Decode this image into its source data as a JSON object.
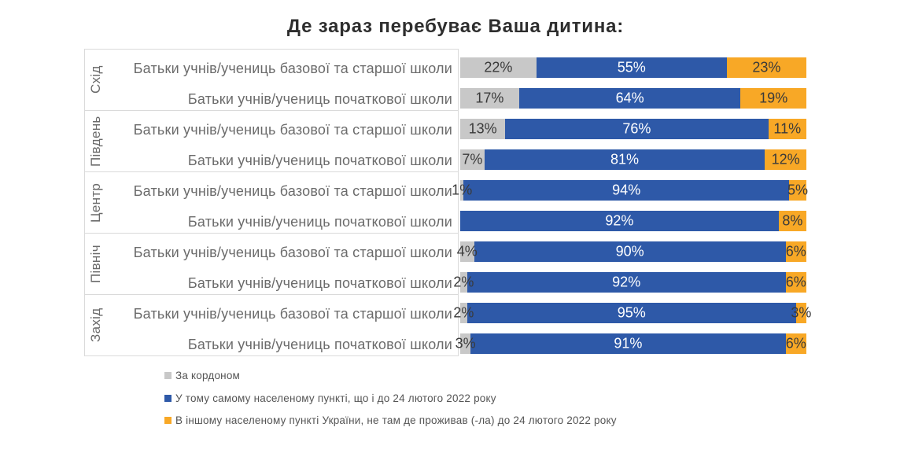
{
  "title": "Де зараз перебуває Ваша дитина:",
  "colors": {
    "abroad": "#C8C8C8",
    "same_settlement": "#2E59A8",
    "other_settlement": "#F8A826"
  },
  "legend": {
    "items": [
      {
        "key": "abroad",
        "label": "За кордоном"
      },
      {
        "key": "same_settlement",
        "label": "У тому самому населеному пункті, що і до 24 лютого 2022 року"
      },
      {
        "key": "other_settlement",
        "label": "В іншому населеному пункті України, не там де проживав (-ла) до 24 лютого 2022 року"
      }
    ]
  },
  "chart_data": {
    "type": "bar",
    "variant": "stacked-horizontal",
    "title": "Де зараз перебуває Ваша дитина:",
    "unit": "%",
    "xlim": [
      0,
      100
    ],
    "value_suffix": "%",
    "series": [
      "За кордоном",
      "У тому самому населеному пункті, що і до 24 лютого 2022 року",
      "В іншому населеному пункті України, не там де проживав (-ла) до 24 лютого 2022 року"
    ],
    "series_keys": [
      "abroad",
      "same_settlement",
      "other_settlement"
    ],
    "groups": [
      {
        "region": "Схід",
        "rows": [
          {
            "label": "Батьки учнів/учениць базової та старшої школи",
            "values": [
              22,
              55,
              23
            ]
          },
          {
            "label": "Батьки учнів/учениць початкової школи",
            "values": [
              17,
              64,
              19
            ]
          }
        ]
      },
      {
        "region": "Південь",
        "rows": [
          {
            "label": "Батьки учнів/учениць базової та старшої школи",
            "values": [
              13,
              76,
              11
            ]
          },
          {
            "label": "Батьки учнів/учениць початкової школи",
            "values": [
              7,
              81,
              12
            ]
          }
        ]
      },
      {
        "region": "Центр",
        "rows": [
          {
            "label": "Батьки учнів/учениць базової та старшої школи",
            "values": [
              1,
              94,
              5
            ]
          },
          {
            "label": "Батьки учнів/учениць початкової школи",
            "values": [
              0,
              92,
              8
            ]
          }
        ]
      },
      {
        "region": "Північ",
        "rows": [
          {
            "label": "Батьки учнів/учениць базової та старшої школи",
            "values": [
              4,
              90,
              6
            ]
          },
          {
            "label": "Батьки учнів/учениць початкової школи",
            "values": [
              2,
              92,
              6
            ]
          }
        ]
      },
      {
        "region": "Захід",
        "rows": [
          {
            "label": "Батьки учнів/учениць базової та старшої школи",
            "values": [
              2,
              95,
              3
            ]
          },
          {
            "label": "Батьки учнів/учениць початкової школи",
            "values": [
              3,
              91,
              6
            ]
          }
        ]
      }
    ]
  }
}
